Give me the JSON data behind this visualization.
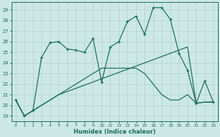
{
  "xlabel": "Humidex (Indice chaleur)",
  "bg_color": "#cce8e5",
  "line_color": "#1a6b5a",
  "grid_color": "#aed0cc",
  "xlim": [
    -0.5,
    23.5
  ],
  "ylim": [
    18.5,
    29.7
  ],
  "yticks": [
    19,
    20,
    21,
    22,
    23,
    24,
    25,
    26,
    27,
    28,
    29
  ],
  "xticks": [
    0,
    1,
    2,
    3,
    4,
    5,
    6,
    7,
    8,
    9,
    10,
    11,
    12,
    13,
    14,
    15,
    16,
    17,
    18,
    19,
    20,
    21,
    22,
    23
  ],
  "line1_y": [
    20.5,
    19.0,
    19.5,
    24.5,
    25.9,
    26.0,
    25.3,
    25.2,
    25.0,
    26.3,
    22.2,
    25.5,
    26.0,
    27.9,
    28.4,
    26.7,
    29.2,
    29.2,
    28.1,
    24.9,
    23.3,
    20.2,
    22.3,
    20.3
  ],
  "line2_y": [
    20.5,
    19.0,
    19.5,
    20.0,
    20.5,
    21.0,
    21.3,
    21.6,
    21.9,
    22.2,
    22.5,
    22.8,
    23.1,
    23.4,
    23.7,
    24.0,
    24.3,
    24.6,
    24.9,
    25.2,
    25.5,
    20.2,
    20.3,
    20.3
  ],
  "line3_y": [
    20.5,
    19.0,
    19.5,
    20.0,
    20.5,
    21.0,
    21.5,
    22.0,
    22.5,
    23.0,
    23.5,
    23.5,
    23.5,
    23.5,
    23.5,
    23.0,
    22.0,
    21.0,
    20.5,
    20.5,
    21.0,
    20.2,
    20.3,
    20.3
  ]
}
